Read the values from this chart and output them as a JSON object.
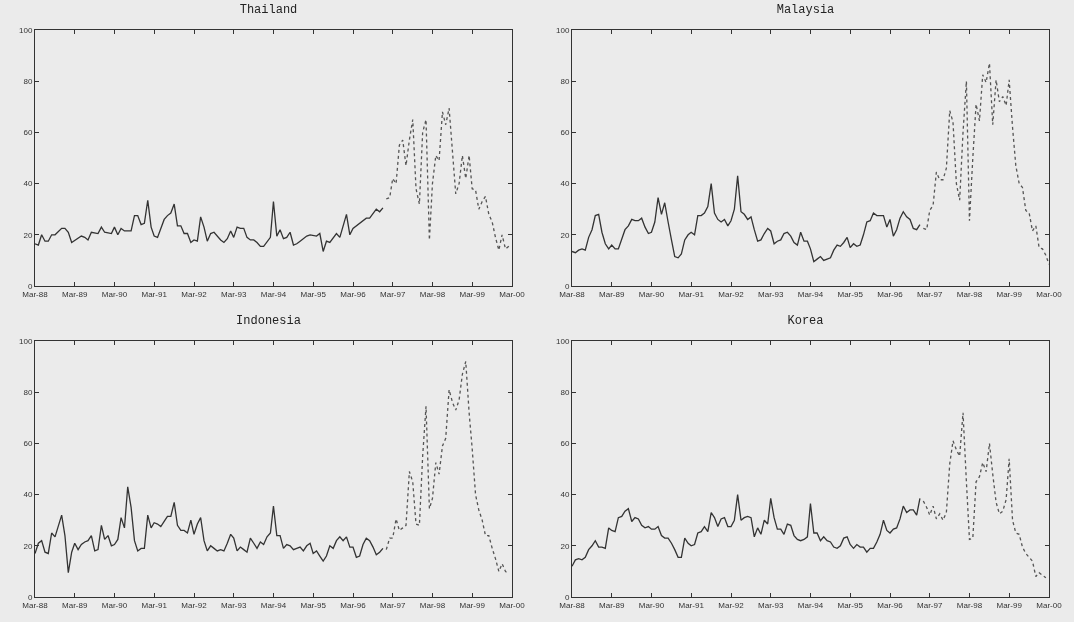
{
  "chart_data": [
    {
      "type": "line",
      "title": "Thailand",
      "xlim": [
        "1988-03",
        "2000-03"
      ],
      "xticks": [
        {
          "value": "1988-03",
          "label": "Mar-88"
        },
        {
          "value": "1989-03",
          "label": "Mar-89"
        },
        {
          "value": "1990-03",
          "label": "Mar-90"
        },
        {
          "value": "1991-03",
          "label": "Mar-91"
        },
        {
          "value": "1992-03",
          "label": "Mar-92"
        },
        {
          "value": "1993-03",
          "label": "Mar-93"
        },
        {
          "value": "1994-03",
          "label": "Mar-94"
        },
        {
          "value": "1995-03",
          "label": "Mar-95"
        },
        {
          "value": "1996-03",
          "label": "Mar-96"
        },
        {
          "value": "1997-03",
          "label": "Mar-97"
        },
        {
          "value": "1998-03",
          "label": "Mar-98"
        },
        {
          "value": "1999-03",
          "label": "Mar-99"
        },
        {
          "value": "2000-03",
          "label": "Mar-00"
        }
      ],
      "ylim": [
        0,
        100
      ],
      "yticks": [
        0,
        20,
        40,
        60,
        80,
        100
      ],
      "grid": false,
      "marker": "none",
      "series": [
        {
          "color": "#333333",
          "line_style": "solid",
          "x": [
            "1988-03",
            "1988-04",
            "1988-05",
            "1988-06",
            "1988-07",
            "1988-08",
            "1988-09",
            "1988-11",
            "1988-12",
            "1989-01",
            "1989-02",
            "1989-05",
            "1989-06",
            "1989-07",
            "1989-08",
            "1989-10",
            "1989-11",
            "1989-12",
            "1990-02",
            "1990-03",
            "1990-04",
            "1990-05",
            "1990-06",
            "1990-08",
            "1990-09",
            "1990-10",
            "1990-11",
            "1990-12",
            "1991-01",
            "1991-02",
            "1991-03",
            "1991-04",
            "1991-06",
            "1991-07",
            "1991-08",
            "1991-09",
            "1991-10",
            "1991-11",
            "1991-12",
            "1992-01",
            "1992-02",
            "1992-03",
            "1992-04",
            "1992-05",
            "1992-06",
            "1992-07",
            "1992-08",
            "1992-09",
            "1992-11",
            "1992-12",
            "1993-01",
            "1993-02",
            "1993-03",
            "1993-04",
            "1993-05",
            "1993-06",
            "1993-07",
            "1993-08",
            "1993-09",
            "1993-10",
            "1993-11",
            "1993-12",
            "1994-02",
            "1994-03",
            "1994-04",
            "1994-05",
            "1994-06",
            "1994-07",
            "1994-08",
            "1994-09",
            "1994-10",
            "1994-11",
            "1995-01",
            "1995-02",
            "1995-04",
            "1995-05",
            "1995-06",
            "1995-07",
            "1995-08",
            "1995-10",
            "1995-11",
            "1996-01",
            "1996-02",
            "1996-03",
            "1996-07",
            "1996-08",
            "1996-10",
            "1996-11",
            "1996-12"
          ],
          "values": [
            16.5,
            16,
            20,
            17.5,
            17.5,
            20,
            20,
            22.5,
            22.5,
            21,
            17,
            19.5,
            19,
            18,
            21,
            20.5,
            23,
            21,
            20.5,
            23,
            20,
            22.5,
            21.5,
            21.5,
            27.5,
            27.5,
            24,
            24.5,
            33.5,
            23,
            19.5,
            19,
            26,
            27.5,
            28.5,
            32,
            23.5,
            23.5,
            20.5,
            20.5,
            17,
            18,
            17.5,
            27,
            23,
            17.5,
            20.5,
            21,
            18,
            17,
            18.5,
            21.5,
            19,
            23,
            22.5,
            22.5,
            19,
            18,
            18,
            17,
            15.5,
            15.5,
            19,
            33,
            19.5,
            22,
            18.5,
            19,
            21,
            16,
            16.5,
            17.5,
            19.5,
            20,
            19.5,
            20.5,
            13.5,
            17.5,
            17,
            20.5,
            19,
            28,
            20,
            22.5,
            26.5,
            26.5,
            30,
            29,
            30.5
          ]
        },
        {
          "color": "#555555",
          "line_style": "dotted",
          "x": [
            "1997-01",
            "1997-02",
            "1997-03",
            "1997-04",
            "1997-05",
            "1997-06",
            "1997-07",
            "1997-08",
            "1997-09",
            "1997-10",
            "1997-11",
            "1997-12",
            "1998-01",
            "1998-02",
            "1998-03",
            "1998-04",
            "1998-05",
            "1998-06",
            "1998-07",
            "1998-08",
            "1998-10",
            "1998-11",
            "1998-12",
            "1999-01",
            "1999-02",
            "1999-03",
            "1999-04",
            "1999-05",
            "1999-06",
            "1999-07",
            "1999-08",
            "1999-09",
            "1999-10",
            "1999-11",
            "1999-12",
            "2000-01",
            "2000-02"
          ],
          "values": [
            34,
            34.5,
            42,
            40,
            55,
            57,
            47,
            57,
            65,
            38,
            32,
            60,
            65,
            18,
            40,
            51,
            49,
            68,
            63,
            69.5,
            36,
            40,
            51,
            42,
            51,
            38,
            37.5,
            30,
            33,
            35,
            28,
            25,
            19,
            14,
            20,
            14.5,
            15.5
          ]
        }
      ]
    },
    {
      "type": "line",
      "title": "Malaysia",
      "xlim": [
        "1988-03",
        "2000-03"
      ],
      "xticks": [
        {
          "value": "1988-03",
          "label": "Mar-88"
        },
        {
          "value": "1989-03",
          "label": "Mar-89"
        },
        {
          "value": "1990-03",
          "label": "Mar-90"
        },
        {
          "value": "1991-03",
          "label": "Mar-91"
        },
        {
          "value": "1992-03",
          "label": "Mar-92"
        },
        {
          "value": "1993-03",
          "label": "Mar-93"
        },
        {
          "value": "1994-03",
          "label": "Mar-94"
        },
        {
          "value": "1995-03",
          "label": "Mar-95"
        },
        {
          "value": "1996-03",
          "label": "Mar-96"
        },
        {
          "value": "1997-03",
          "label": "Mar-97"
        },
        {
          "value": "1998-03",
          "label": "Mar-98"
        },
        {
          "value": "1999-03",
          "label": "Mar-99"
        },
        {
          "value": "2000-03",
          "label": "Mar-00"
        }
      ],
      "ylim": [
        0,
        100
      ],
      "yticks": [
        0,
        20,
        40,
        60,
        80,
        100
      ],
      "grid": false,
      "marker": "none",
      "series": [
        {
          "color": "#333333",
          "line_style": "solid",
          "x": [
            "1988-03",
            "1988-04",
            "1988-05",
            "1988-06",
            "1988-07",
            "1988-08",
            "1988-09",
            "1988-10",
            "1988-11",
            "1988-12",
            "1989-01",
            "1989-02",
            "1989-03",
            "1989-04",
            "1989-05",
            "1989-07",
            "1989-08",
            "1989-09",
            "1989-10",
            "1989-11",
            "1989-12",
            "1990-01",
            "1990-02",
            "1990-03",
            "1990-04",
            "1990-05",
            "1990-06",
            "1990-07",
            "1990-08",
            "1990-09",
            "1990-10",
            "1990-11",
            "1990-12",
            "1991-01",
            "1991-02",
            "1991-03",
            "1991-04",
            "1991-05",
            "1991-06",
            "1991-07",
            "1991-08",
            "1991-09",
            "1991-10",
            "1991-11",
            "1991-12",
            "1992-01",
            "1992-02",
            "1992-03",
            "1992-04",
            "1992-05",
            "1992-06",
            "1992-07",
            "1992-08",
            "1992-09",
            "1992-10",
            "1992-11",
            "1992-12",
            "1993-01",
            "1993-02",
            "1993-03",
            "1993-04",
            "1993-05",
            "1993-06",
            "1993-07",
            "1993-08",
            "1993-09",
            "1993-10",
            "1993-11",
            "1993-12",
            "1994-01",
            "1994-02",
            "1994-03",
            "1994-04",
            "1994-05",
            "1994-06",
            "1994-07",
            "1994-08",
            "1994-09",
            "1994-10",
            "1994-11",
            "1994-12",
            "1995-01",
            "1995-02",
            "1995-03",
            "1995-04",
            "1995-05",
            "1995-06",
            "1995-07",
            "1995-08",
            "1995-09",
            "1995-10",
            "1995-11",
            "1995-12",
            "1996-01",
            "1996-02",
            "1996-03",
            "1996-04",
            "1996-05",
            "1996-06",
            "1996-07",
            "1996-08",
            "1996-09",
            "1996-10",
            "1996-11",
            "1996-12"
          ],
          "values": [
            13.5,
            13,
            14,
            14.5,
            14,
            19,
            22,
            27.5,
            28,
            21,
            16.5,
            14.5,
            16,
            14.5,
            14.5,
            22,
            23.5,
            26,
            25.5,
            25.5,
            26.5,
            23,
            20.5,
            21,
            25,
            34.5,
            28,
            32.5,
            25,
            18,
            11.5,
            11,
            12.5,
            18,
            20,
            21,
            20,
            27.5,
            27.5,
            28.5,
            31,
            40,
            28.5,
            26,
            25,
            26,
            23.5,
            25.5,
            30,
            43,
            29,
            28,
            26,
            27,
            22,
            17.5,
            18,
            20.5,
            22.5,
            21.5,
            16.5,
            17.5,
            18,
            20.5,
            21,
            19.5,
            17,
            16,
            21,
            17.5,
            17.5,
            14.5,
            9.5,
            10.5,
            11.5,
            10,
            10.5,
            11,
            14,
            16,
            15.5,
            17,
            19,
            15,
            16.5,
            15.5,
            16,
            20,
            25,
            25.5,
            28.5,
            27.5,
            27.5,
            27.5,
            23,
            26,
            19.5,
            22,
            26.5,
            29,
            27,
            26,
            22.5,
            22,
            24
          ]
        },
        {
          "color": "#555555",
          "line_style": "dotted",
          "x": [
            "1997-01",
            "1997-02",
            "1997-03",
            "1997-04",
            "1997-05",
            "1997-06",
            "1997-07",
            "1997-08",
            "1997-09",
            "1997-10",
            "1997-11",
            "1997-12",
            "1998-01",
            "1998-02",
            "1998-03",
            "1998-04",
            "1998-05",
            "1998-06",
            "1998-07",
            "1998-08",
            "1998-09",
            "1998-10",
            "1998-11",
            "1998-12",
            "1999-01",
            "1999-02",
            "1999-03",
            "1999-04",
            "1999-05",
            "1999-06",
            "1999-07",
            "1999-08",
            "1999-09",
            "1999-10",
            "1999-11",
            "1999-12",
            "2000-01",
            "2000-02",
            "2000-03"
          ],
          "values": [
            22.5,
            22,
            29.5,
            31.5,
            44.5,
            41.5,
            41.5,
            46,
            68.5,
            64,
            40,
            33.5,
            60,
            80,
            25.5,
            50,
            71,
            64.5,
            82.5,
            79.5,
            87,
            63,
            80.5,
            72,
            74,
            70.5,
            80.5,
            62,
            47,
            40,
            38.5,
            29.5,
            28.5,
            21.5,
            23.5,
            15,
            14.5,
            12,
            8.5
          ]
        }
      ]
    },
    {
      "type": "line",
      "title": "Indonesia",
      "xlim": [
        "1988-03",
        "2000-03"
      ],
      "xticks": [
        {
          "value": "1988-03",
          "label": "Mar-88"
        },
        {
          "value": "1989-03",
          "label": "Mar-89"
        },
        {
          "value": "1990-03",
          "label": "Mar-90"
        },
        {
          "value": "1991-03",
          "label": "Mar-91"
        },
        {
          "value": "1992-03",
          "label": "Mar-92"
        },
        {
          "value": "1993-03",
          "label": "Mar-93"
        },
        {
          "value": "1994-03",
          "label": "Mar-94"
        },
        {
          "value": "1995-03",
          "label": "Mar-95"
        },
        {
          "value": "1996-03",
          "label": "Mar-96"
        },
        {
          "value": "1997-03",
          "label": "Mar-97"
        },
        {
          "value": "1998-03",
          "label": "Mar-98"
        },
        {
          "value": "1999-03",
          "label": "Mar-99"
        },
        {
          "value": "2000-03",
          "label": "Mar-00"
        }
      ],
      "ylim": [
        0,
        100
      ],
      "yticks": [
        0,
        20,
        40,
        60,
        80,
        100
      ],
      "grid": false,
      "marker": "none",
      "series": [
        {
          "color": "#333333",
          "line_style": "solid",
          "x": [
            "1988-03",
            "1988-04",
            "1988-05",
            "1988-06",
            "1988-07",
            "1988-08",
            "1988-09",
            "1988-11",
            "1988-12",
            "1989-01",
            "1989-02",
            "1989-03",
            "1989-04",
            "1989-05",
            "1989-06",
            "1989-07",
            "1989-08",
            "1989-09",
            "1989-10",
            "1989-11",
            "1989-12",
            "1990-01",
            "1990-02",
            "1990-03",
            "1990-04",
            "1990-05",
            "1990-06",
            "1990-07",
            "1990-08",
            "1990-09",
            "1990-10",
            "1990-11",
            "1990-12",
            "1991-01",
            "1991-02",
            "1991-03",
            "1991-04",
            "1991-05",
            "1991-06",
            "1991-07",
            "1991-08",
            "1991-09",
            "1991-10",
            "1991-11",
            "1991-12",
            "1992-01",
            "1992-02",
            "1992-03",
            "1992-04",
            "1992-05",
            "1992-06",
            "1992-07",
            "1992-08",
            "1992-09",
            "1992-10",
            "1992-11",
            "1992-12",
            "1993-01",
            "1993-02",
            "1993-03",
            "1993-04",
            "1993-05",
            "1993-06",
            "1993-07",
            "1993-08",
            "1993-09",
            "1993-10",
            "1993-11",
            "1993-12",
            "1994-01",
            "1994-02",
            "1994-03",
            "1994-04",
            "1994-05",
            "1994-06",
            "1994-07",
            "1994-08",
            "1994-09",
            "1994-10",
            "1994-11",
            "1994-12",
            "1995-01",
            "1995-02",
            "1995-03",
            "1995-04",
            "1995-05",
            "1995-06",
            "1995-07",
            "1995-08",
            "1995-09",
            "1995-10",
            "1995-11",
            "1995-12",
            "1996-01",
            "1996-02",
            "1996-03",
            "1996-04",
            "1996-05",
            "1996-06",
            "1996-07",
            "1996-08",
            "1996-09",
            "1996-10",
            "1996-11",
            "1996-12"
          ],
          "values": [
            17,
            21,
            22,
            17.5,
            17,
            25,
            23.5,
            32,
            24,
            9.5,
            17.5,
            21,
            18.5,
            20.5,
            21.5,
            22,
            24,
            18,
            18.5,
            28,
            22.5,
            24,
            20,
            20.5,
            22.5,
            31,
            27,
            43,
            35,
            22,
            18,
            19,
            19,
            32,
            27,
            29,
            28.5,
            27.5,
            29.5,
            31.5,
            31.5,
            37,
            28,
            26,
            26,
            25,
            30,
            24.5,
            28.5,
            31,
            22,
            18,
            20,
            19,
            18,
            18.5,
            18,
            21,
            24.5,
            23,
            18,
            19.5,
            18.5,
            17.5,
            23,
            21,
            19,
            21.5,
            20.5,
            23.5,
            25,
            35.5,
            24,
            24,
            19,
            20.5,
            20,
            18.5,
            19,
            19.5,
            18,
            20,
            21,
            17,
            18,
            16,
            14,
            16,
            20,
            19,
            22,
            23.5,
            22,
            23.5,
            19.5,
            19.5,
            15.5,
            16,
            20.5,
            23,
            22,
            19.5,
            16.5,
            17.5,
            19
          ]
        },
        {
          "color": "#555555",
          "line_style": "dotted",
          "x": [
            "1997-01",
            "1997-02",
            "1997-03",
            "1997-04",
            "1997-05",
            "1997-06",
            "1997-07",
            "1997-08",
            "1997-09",
            "1997-10",
            "1997-11",
            "1997-12",
            "1998-01",
            "1998-02",
            "1998-03",
            "1998-04",
            "1998-05",
            "1998-06",
            "1998-07",
            "1998-08",
            "1998-09",
            "1998-10",
            "1998-11",
            "1998-12",
            "1999-01",
            "1999-02",
            "1999-03",
            "1999-04",
            "1999-05",
            "1999-06",
            "1999-07",
            "1999-08",
            "1999-09",
            "1999-10",
            "1999-11",
            "1999-12",
            "2000-01",
            "2000-02"
          ],
          "values": [
            18.5,
            23,
            23,
            30.5,
            26,
            27,
            28,
            49,
            45,
            28.5,
            28,
            55,
            74.5,
            34.5,
            38.5,
            52.5,
            48,
            59,
            62,
            81,
            76,
            73,
            77,
            87,
            92,
            72,
            58,
            40,
            34,
            30,
            24,
            24,
            19,
            15,
            10,
            13,
            10,
            9
          ]
        }
      ]
    },
    {
      "type": "line",
      "title": "Korea",
      "xlim": [
        "1988-03",
        "2000-03"
      ],
      "xticks": [
        {
          "value": "1988-03",
          "label": "Mar-88"
        },
        {
          "value": "1989-03",
          "label": "Mar-89"
        },
        {
          "value": "1990-03",
          "label": "Mar-90"
        },
        {
          "value": "1991-03",
          "label": "Mar-91"
        },
        {
          "value": "1992-03",
          "label": "Mar-92"
        },
        {
          "value": "1993-03",
          "label": "Mar-93"
        },
        {
          "value": "1994-03",
          "label": "Mar-94"
        },
        {
          "value": "1995-03",
          "label": "Mar-95"
        },
        {
          "value": "1996-03",
          "label": "Mar-96"
        },
        {
          "value": "1997-03",
          "label": "Mar-97"
        },
        {
          "value": "1998-03",
          "label": "Mar-98"
        },
        {
          "value": "1999-03",
          "label": "Mar-99"
        },
        {
          "value": "2000-03",
          "label": "Mar-00"
        }
      ],
      "ylim": [
        0,
        100
      ],
      "yticks": [
        0,
        20,
        40,
        60,
        80,
        100
      ],
      "grid": false,
      "marker": "none",
      "series": [
        {
          "color": "#333333",
          "line_style": "solid",
          "x": [
            "1988-03",
            "1988-04",
            "1988-05",
            "1988-06",
            "1988-07",
            "1988-08",
            "1988-09",
            "1988-10",
            "1988-11",
            "1988-12",
            "1989-01",
            "1989-02",
            "1989-03",
            "1989-04",
            "1989-05",
            "1989-06",
            "1989-07",
            "1989-08",
            "1989-09",
            "1989-10",
            "1989-11",
            "1989-12",
            "1990-01",
            "1990-02",
            "1990-03",
            "1990-04",
            "1990-05",
            "1990-06",
            "1990-07",
            "1990-08",
            "1990-09",
            "1990-10",
            "1990-11",
            "1990-12",
            "1991-01",
            "1991-02",
            "1991-03",
            "1991-04",
            "1991-05",
            "1991-06",
            "1991-07",
            "1991-08",
            "1991-09",
            "1991-10",
            "1991-11",
            "1991-12",
            "1992-01",
            "1992-02",
            "1992-03",
            "1992-04",
            "1992-05",
            "1992-06",
            "1992-07",
            "1992-08",
            "1992-09",
            "1992-10",
            "1992-11",
            "1992-12",
            "1993-01",
            "1993-02",
            "1993-03",
            "1993-04",
            "1993-05",
            "1993-06",
            "1993-07",
            "1993-08",
            "1993-09",
            "1993-10",
            "1993-11",
            "1993-12",
            "1994-01",
            "1994-02",
            "1994-03",
            "1994-04",
            "1994-05",
            "1994-06",
            "1994-07",
            "1994-08",
            "1994-09",
            "1994-10",
            "1994-11",
            "1994-12",
            "1995-01",
            "1995-02",
            "1995-03",
            "1995-04",
            "1995-05",
            "1995-06",
            "1995-07",
            "1995-08",
            "1995-09",
            "1995-10",
            "1995-11",
            "1995-12",
            "1996-01",
            "1996-02",
            "1996-03",
            "1996-04",
            "1996-05",
            "1996-06",
            "1996-07",
            "1996-08",
            "1996-09",
            "1996-10",
            "1996-11",
            "1996-12"
          ],
          "values": [
            12,
            14.5,
            15,
            14.5,
            15.5,
            18.5,
            20,
            22,
            19.5,
            19.5,
            19,
            27,
            26,
            25.5,
            31,
            31.5,
            33.5,
            34.5,
            29.5,
            31,
            30.5,
            28,
            27,
            27.5,
            26.5,
            26.5,
            27.5,
            24,
            23,
            23,
            21,
            18.5,
            15.5,
            15.5,
            23,
            21,
            20,
            20.5,
            25,
            25.5,
            27.5,
            25.5,
            33,
            31,
            27.5,
            30.5,
            31,
            27.5,
            27.5,
            30,
            40,
            30,
            31,
            31.5,
            31,
            23.5,
            27,
            24.5,
            30,
            28.5,
            38.5,
            31,
            26.5,
            26.5,
            24.5,
            28.5,
            28,
            24,
            22.5,
            22,
            22.5,
            23.5,
            36.5,
            25,
            25,
            22,
            23.5,
            22,
            21.5,
            19.5,
            19,
            20,
            23,
            23.5,
            20.5,
            19,
            20.5,
            19.5,
            19.5,
            17.5,
            19,
            19,
            21.5,
            24.5,
            30,
            26,
            25,
            26.5,
            27,
            30.5,
            35.5,
            33,
            34,
            34,
            32,
            38.5
          ]
        },
        {
          "color": "#555555",
          "line_style": "dotted",
          "x": [
            "1997-01",
            "1997-02",
            "1997-03",
            "1997-04",
            "1997-05",
            "1997-06",
            "1997-07",
            "1997-08",
            "1997-09",
            "1997-10",
            "1997-11",
            "1997-12",
            "1998-01",
            "1998-02",
            "1998-03",
            "1998-04",
            "1998-05",
            "1998-06",
            "1998-07",
            "1998-08",
            "1998-09",
            "1998-10",
            "1998-11",
            "1998-12",
            "1999-01",
            "1999-02",
            "1999-03",
            "1999-04",
            "1999-05",
            "1999-06",
            "1999-07",
            "1999-08",
            "1999-09",
            "1999-10",
            "1999-11",
            "1999-12",
            "2000-01",
            "2000-02"
          ],
          "values": [
            37.5,
            35,
            32,
            35.5,
            30.5,
            32.5,
            30,
            33,
            52,
            61,
            57.5,
            55,
            72,
            45,
            22.5,
            23,
            45,
            47,
            52.5,
            49,
            60,
            48,
            37,
            32.5,
            33.5,
            38,
            54,
            30,
            25,
            24.5,
            19.5,
            17,
            15.5,
            14,
            8,
            9.5,
            8.5,
            7.5
          ]
        }
      ]
    }
  ]
}
